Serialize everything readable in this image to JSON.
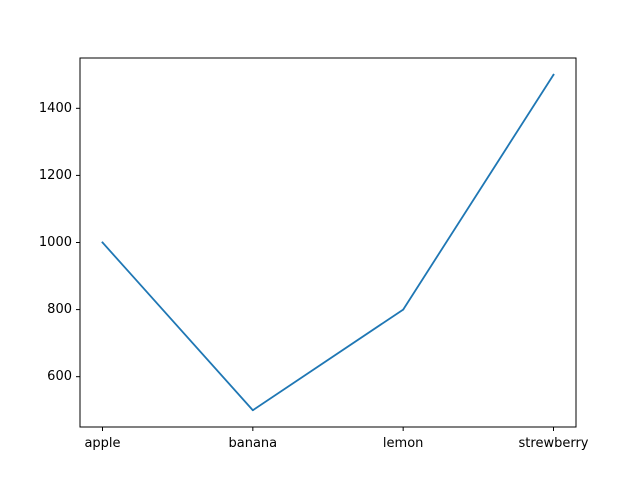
{
  "chart_data": {
    "type": "line",
    "categories": [
      "apple",
      "banana",
      "lemon",
      "strewberry"
    ],
    "series": [
      {
        "values": [
          1000,
          500,
          800,
          1500
        ]
      }
    ],
    "title": "",
    "xlabel": "",
    "ylabel": "",
    "ylim": [
      450,
      1550
    ],
    "yticks": [
      600,
      800,
      1000,
      1200,
      1400
    ],
    "grid": false,
    "legend": "none",
    "line_color": "#1f77b4"
  }
}
